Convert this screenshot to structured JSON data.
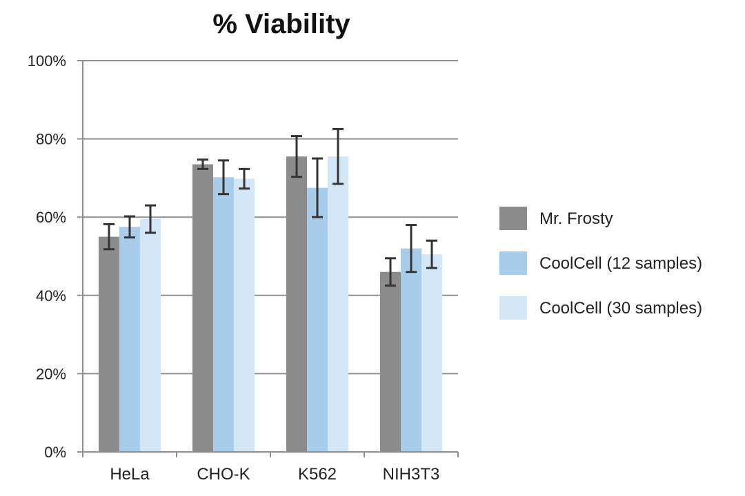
{
  "chart_data": {
    "type": "bar",
    "title": "% Viability",
    "xlabel": "",
    "ylabel": "",
    "ylim": [
      0,
      100
    ],
    "yticks": [
      "0%",
      "20%",
      "40%",
      "60%",
      "80%",
      "100%"
    ],
    "ytick_values": [
      0,
      20,
      40,
      60,
      80,
      100
    ],
    "categories": [
      "HeLa",
      "CHO-K",
      "K562",
      "NIH3T3"
    ],
    "series": [
      {
        "name": "Mr. Frosty",
        "color": "#8c8c8c",
        "values": [
          55,
          73.5,
          75.5,
          46
        ],
        "errors": [
          3.2,
          1.2,
          5.2,
          3.5
        ]
      },
      {
        "name": "CoolCell (12 samples)",
        "color": "#a8cdea",
        "values": [
          57.5,
          70.2,
          67.5,
          52
        ],
        "errors": [
          2.7,
          4.3,
          7.5,
          6
        ]
      },
      {
        "name": "CoolCell (30 samples)",
        "color": "#d4e7f7",
        "values": [
          59.5,
          69.8,
          75.5,
          50.5
        ],
        "errors": [
          3.5,
          2.5,
          7,
          3.5
        ]
      }
    ],
    "grid": true,
    "legend_position": "right"
  }
}
